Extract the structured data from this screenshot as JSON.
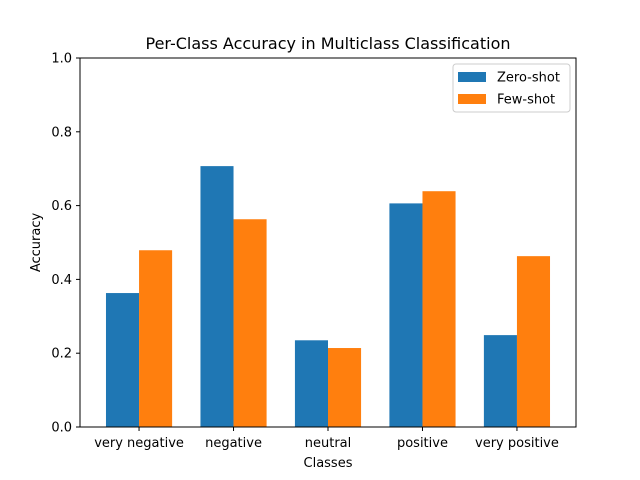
{
  "chart_data": {
    "type": "bar",
    "title": "Per-Class Accuracy in Multiclass Classification",
    "xlabel": "Classes",
    "ylabel": "Accuracy",
    "categories": [
      "very negative",
      "negative",
      "neutral",
      "positive",
      "very positive"
    ],
    "series": [
      {
        "name": "Zero-shot",
        "values": [
          0.363,
          0.707,
          0.235,
          0.606,
          0.249
        ],
        "color": "#1f77b4"
      },
      {
        "name": "Few-shot",
        "values": [
          0.479,
          0.563,
          0.214,
          0.639,
          0.463
        ],
        "color": "#ff7f0e"
      }
    ],
    "ylim": [
      0,
      1.0
    ],
    "yticks": [
      "0.0",
      "0.2",
      "0.4",
      "0.6",
      "0.8",
      "1.0"
    ],
    "grid": false,
    "legend_position": "top-right"
  }
}
